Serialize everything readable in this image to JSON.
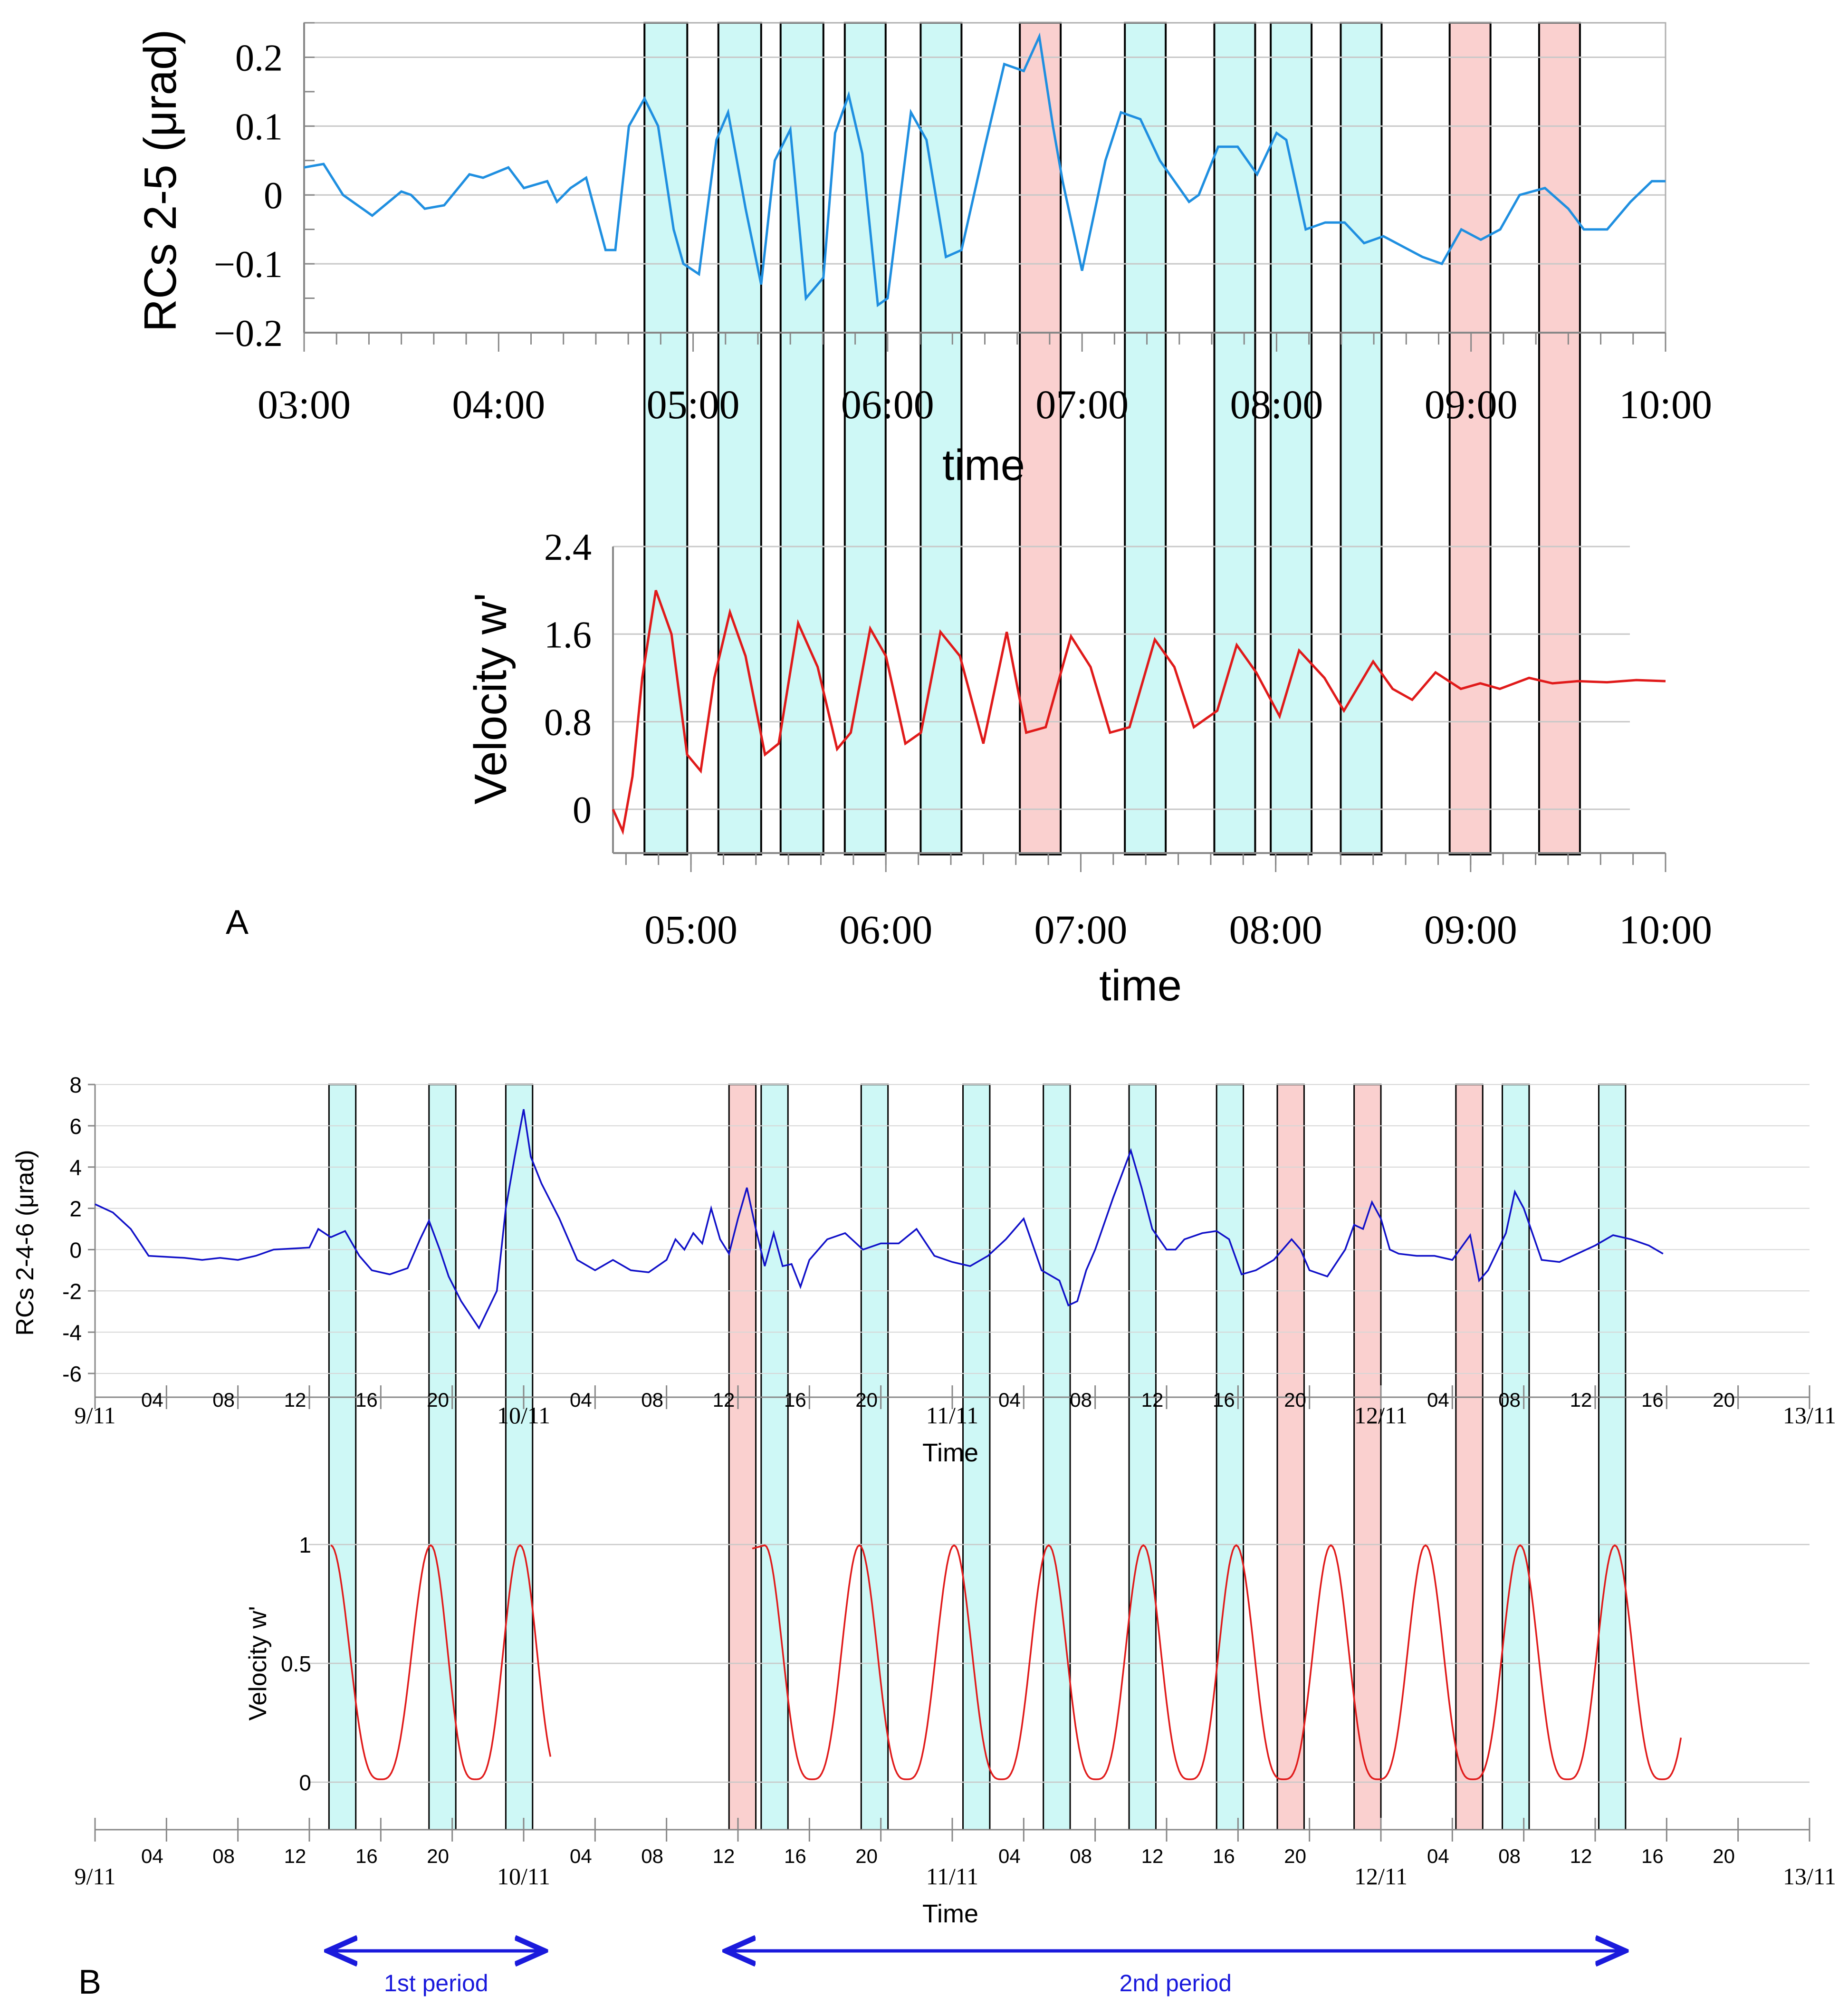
{
  "figure": {
    "panel_a_label": "A",
    "panel_b_label": "B",
    "period_1_label": "1st period",
    "period_2_label": "2nd period",
    "colors": {
      "cyan_band": "#c6f7f4",
      "pink_band": "#f9c8c7",
      "tilt_a": "#1f8fe0",
      "tilt_b": "#1010c8",
      "velocity": "#e01a1a",
      "grid": "#c8c8c8",
      "arrow": "#1a1adc"
    }
  },
  "chart_data": [
    {
      "id": "A-top",
      "type": "line",
      "ylabel": "RCs 2-5  (μrad)",
      "xlabel": "time",
      "x_unit": "hours",
      "xlim": [
        3.0,
        10.0
      ],
      "ylim": [
        -0.2,
        0.25
      ],
      "yticks": [
        0.2,
        0.1,
        0,
        -0.1,
        -0.2
      ],
      "ytick_labels": [
        "0.2",
        "0.1",
        "0",
        "−0.1",
        "−0.2"
      ],
      "xticks": [
        3,
        4,
        5,
        6,
        7,
        8,
        9,
        10
      ],
      "xtick_labels": [
        "03:00",
        "04:00",
        "05:00",
        "06:00",
        "07:00",
        "08:00",
        "09:00",
        "10:00"
      ],
      "series": [
        {
          "name": "RCs 2-5",
          "x": [
            3.0,
            3.1,
            3.2,
            3.35,
            3.5,
            3.55,
            3.62,
            3.72,
            3.85,
            3.92,
            4.05,
            4.13,
            4.25,
            4.3,
            4.37,
            4.45,
            4.55,
            4.6,
            4.67,
            4.75,
            4.82,
            4.9,
            4.95,
            5.03,
            5.12,
            5.18,
            5.27,
            5.35,
            5.42,
            5.5,
            5.58,
            5.67,
            5.73,
            5.8,
            5.87,
            5.95,
            6.0,
            6.12,
            6.2,
            6.3,
            6.38,
            6.5,
            6.6,
            6.7,
            6.78,
            6.85,
            6.9,
            7.0,
            7.12,
            7.2,
            7.3,
            7.4,
            7.55,
            7.6,
            7.7,
            7.8,
            7.9,
            8.0,
            8.05,
            8.15,
            8.25,
            8.35,
            8.45,
            8.55,
            8.65,
            8.75,
            8.85,
            8.95,
            9.05,
            9.15,
            9.25,
            9.38,
            9.5,
            9.58,
            9.7,
            9.82,
            9.93,
            10.0
          ],
          "y": [
            0.04,
            0.045,
            0.0,
            -0.03,
            0.005,
            0.0,
            -0.02,
            -0.015,
            0.03,
            0.025,
            0.04,
            0.01,
            0.02,
            -0.01,
            0.01,
            0.025,
            -0.08,
            -0.08,
            0.1,
            0.14,
            0.1,
            -0.05,
            -0.1,
            -0.115,
            0.08,
            0.12,
            -0.02,
            -0.13,
            0.05,
            0.095,
            -0.15,
            -0.12,
            0.09,
            0.145,
            0.06,
            -0.16,
            -0.15,
            0.12,
            0.08,
            -0.09,
            -0.08,
            0.07,
            0.19,
            0.18,
            0.23,
            0.1,
            0.02,
            -0.11,
            0.05,
            0.12,
            0.11,
            0.05,
            -0.01,
            0.0,
            0.07,
            0.07,
            0.03,
            0.09,
            0.08,
            -0.05,
            -0.04,
            -0.04,
            -0.07,
            -0.06,
            -0.075,
            -0.09,
            -0.1,
            -0.05,
            -0.065,
            -0.05,
            0.0,
            0.01,
            -0.02,
            -0.05,
            -0.05,
            -0.01,
            0.02,
            0.02
          ]
        }
      ],
      "bands": [
        {
          "start": 4.75,
          "end": 4.97,
          "color": "cyan"
        },
        {
          "start": 5.13,
          "end": 5.35,
          "color": "cyan"
        },
        {
          "start": 5.45,
          "end": 5.67,
          "color": "cyan"
        },
        {
          "start": 5.78,
          "end": 5.99,
          "color": "cyan"
        },
        {
          "start": 6.17,
          "end": 6.38,
          "color": "cyan"
        },
        {
          "start": 6.68,
          "end": 6.89,
          "color": "pink"
        },
        {
          "start": 7.22,
          "end": 7.43,
          "color": "cyan"
        },
        {
          "start": 7.68,
          "end": 7.89,
          "color": "cyan"
        },
        {
          "start": 7.97,
          "end": 8.18,
          "color": "cyan"
        },
        {
          "start": 8.33,
          "end": 8.54,
          "color": "cyan"
        },
        {
          "start": 8.89,
          "end": 9.1,
          "color": "pink"
        },
        {
          "start": 9.35,
          "end": 9.56,
          "color": "pink"
        }
      ]
    },
    {
      "id": "A-bottom",
      "type": "line",
      "ylabel": "Velocity w'",
      "xlabel": "time",
      "x_unit": "hours",
      "xlim": [
        4.6,
        10.0
      ],
      "ylim": [
        -0.4,
        2.4
      ],
      "yticks": [
        2.4,
        1.6,
        0.8,
        0
      ],
      "ytick_labels": [
        "2.4",
        "1.6",
        "0.8",
        "0"
      ],
      "xticks": [
        5,
        6,
        7,
        8,
        9,
        10
      ],
      "xtick_labels": [
        "05:00",
        "06:00",
        "07:00",
        "08:00",
        "09:00",
        "10:00"
      ],
      "series": [
        {
          "name": "Velocity w'",
          "x": [
            4.6,
            4.65,
            4.7,
            4.75,
            4.82,
            4.9,
            4.98,
            5.05,
            5.12,
            5.2,
            5.28,
            5.38,
            5.45,
            5.55,
            5.65,
            5.75,
            5.82,
            5.92,
            6.0,
            6.1,
            6.18,
            6.28,
            6.38,
            6.5,
            6.62,
            6.72,
            6.82,
            6.95,
            7.05,
            7.15,
            7.25,
            7.38,
            7.48,
            7.58,
            7.7,
            7.8,
            7.9,
            8.02,
            8.12,
            8.25,
            8.35,
            8.5,
            8.6,
            8.7,
            8.82,
            8.95,
            9.05,
            9.15,
            9.3,
            9.42,
            9.55,
            9.7,
            9.85,
            10.0
          ],
          "y": [
            0.0,
            -0.2,
            0.3,
            1.2,
            2.0,
            1.6,
            0.5,
            0.35,
            1.2,
            1.8,
            1.4,
            0.5,
            0.6,
            1.7,
            1.3,
            0.55,
            0.7,
            1.65,
            1.4,
            0.6,
            0.7,
            1.62,
            1.4,
            0.6,
            1.62,
            0.7,
            0.75,
            1.58,
            1.3,
            0.7,
            0.75,
            1.55,
            1.3,
            0.75,
            0.9,
            1.5,
            1.25,
            0.85,
            1.45,
            1.2,
            0.9,
            1.35,
            1.1,
            1.0,
            1.25,
            1.1,
            1.15,
            1.1,
            1.2,
            1.15,
            1.17,
            1.16,
            1.18,
            1.17
          ]
        }
      ]
    },
    {
      "id": "B-top",
      "type": "line",
      "ylabel": "RCs 2-4-6 (μrad)",
      "xlabel": "Time",
      "x_unit": "hours since 9/11 00:00",
      "xlim": [
        0,
        96
      ],
      "ylim": [
        -6,
        8
      ],
      "yticks": [
        8,
        6,
        4,
        2,
        0,
        -2,
        -4,
        -6
      ],
      "ytick_labels": [
        "8",
        "6",
        "4",
        "2",
        "0",
        "-2",
        "-4",
        "-6"
      ],
      "xticks": [
        0,
        4,
        8,
        12,
        16,
        20,
        24,
        28,
        32,
        36,
        40,
        44,
        48,
        52,
        56,
        60,
        64,
        68,
        72,
        76,
        80,
        84,
        88,
        92,
        96
      ],
      "xtick_labels": [
        "9/11",
        "04",
        "08",
        "12",
        "16",
        "20",
        "10/11",
        "04",
        "08",
        "12",
        "16",
        "20",
        "11/11",
        "04",
        "08",
        "12",
        "16",
        "20",
        "12/11",
        "04",
        "08",
        "12",
        "16",
        "20",
        "13/11"
      ],
      "series": [
        {
          "name": "RCs 2-4-6",
          "x": [
            0,
            1,
            2,
            3,
            5,
            6,
            7,
            8,
            9,
            10,
            12,
            12.5,
            13.2,
            14,
            14.8,
            15.5,
            16.5,
            17.5,
            18.2,
            18.7,
            19.3,
            19.8,
            20.5,
            21.5,
            22.5,
            23.0,
            23.5,
            24.0,
            24.4,
            25.0,
            26.0,
            27.0,
            28.0,
            29.0,
            30.0,
            31.0,
            32.0,
            32.5,
            33.0,
            33.5,
            34.0,
            34.5,
            35.0,
            35.5,
            36.0,
            36.5,
            37.0,
            37.5,
            38.0,
            38.5,
            39.0,
            39.5,
            40.0,
            40.5,
            41.0,
            42.0,
            43.0,
            44.0,
            45.0,
            46.0,
            47.0,
            48.0,
            49.0,
            50.0,
            51.0,
            52.0,
            53.0,
            54.0,
            54.5,
            55.0,
            55.5,
            56.0,
            57.0,
            58.0,
            58.6,
            59.2,
            60.0,
            60.5,
            61.0,
            62.0,
            62.8,
            63.5,
            64.2,
            65.0,
            66.0,
            67.0,
            67.5,
            68.0,
            69.0,
            70.0,
            70.5,
            71.0,
            71.5,
            72.0,
            72.5,
            73.0,
            74.0,
            75.0,
            76.0,
            77.0,
            77.5,
            78.0,
            79.0,
            79.5,
            80.0,
            81.0,
            82.0,
            83.0,
            84.0,
            85.0,
            86.0,
            87.0,
            87.8
          ],
          "y": [
            2.2,
            1.8,
            1.0,
            -0.3,
            -0.4,
            -0.5,
            -0.4,
            -0.5,
            -0.3,
            0.0,
            0.1,
            1.0,
            0.6,
            0.9,
            -0.3,
            -1.0,
            -1.2,
            -0.9,
            0.5,
            1.4,
            0.0,
            -1.3,
            -2.5,
            -3.8,
            -2.0,
            2.0,
            4.5,
            6.8,
            4.5,
            3.2,
            1.5,
            -0.5,
            -1.0,
            -0.5,
            -1.0,
            -1.1,
            -0.5,
            0.5,
            0.0,
            0.8,
            0.3,
            2.0,
            0.5,
            -0.2,
            1.5,
            3.0,
            1.0,
            -0.8,
            0.8,
            -0.8,
            -0.7,
            -1.8,
            -0.5,
            0.0,
            0.5,
            0.8,
            0.0,
            0.3,
            0.3,
            1.0,
            -0.3,
            -0.6,
            -0.8,
            -0.3,
            0.5,
            1.5,
            -1.0,
            -1.5,
            -2.7,
            -2.5,
            -1.0,
            0.0,
            2.5,
            4.8,
            3.0,
            1.0,
            0.0,
            0.0,
            0.5,
            0.8,
            0.9,
            0.5,
            -1.2,
            -1.0,
            -0.5,
            0.5,
            0.0,
            -1.0,
            -1.3,
            0.0,
            1.2,
            1.0,
            2.3,
            1.5,
            0.0,
            -0.2,
            -0.3,
            -0.3,
            -0.5,
            0.7,
            -1.5,
            -1.0,
            0.8,
            2.8,
            2.0,
            -0.5,
            -0.6,
            -0.2,
            0.2,
            0.7,
            0.5,
            0.2,
            -0.2
          ]
        }
      ],
      "bands": [
        {
          "start": 13.1,
          "end": 14.6,
          "color": "cyan"
        },
        {
          "start": 18.7,
          "end": 20.2,
          "color": "cyan"
        },
        {
          "start": 23.0,
          "end": 24.5,
          "color": "cyan"
        },
        {
          "start": 35.5,
          "end": 37.0,
          "color": "pink"
        },
        {
          "start": 37.3,
          "end": 38.8,
          "color": "cyan"
        },
        {
          "start": 42.9,
          "end": 44.4,
          "color": "cyan"
        },
        {
          "start": 48.6,
          "end": 50.1,
          "color": "cyan"
        },
        {
          "start": 53.1,
          "end": 54.6,
          "color": "cyan"
        },
        {
          "start": 57.9,
          "end": 59.4,
          "color": "cyan"
        },
        {
          "start": 62.8,
          "end": 64.3,
          "color": "cyan"
        },
        {
          "start": 66.2,
          "end": 67.7,
          "color": "pink"
        },
        {
          "start": 70.5,
          "end": 72.0,
          "color": "pink"
        },
        {
          "start": 76.2,
          "end": 77.7,
          "color": "pink"
        },
        {
          "start": 78.8,
          "end": 80.3,
          "color": "cyan"
        },
        {
          "start": 84.2,
          "end": 85.7,
          "color": "cyan"
        }
      ]
    },
    {
      "id": "B-bottom",
      "type": "line",
      "ylabel": "Velocity w'",
      "xlabel": "Time",
      "x_unit": "hours since 9/11 00:00",
      "xlim": [
        0,
        96
      ],
      "ylim": [
        -0.2,
        1.0
      ],
      "yticks": [
        1,
        0.5,
        0
      ],
      "ytick_labels": [
        "1",
        "0.5",
        "0"
      ],
      "xticks": [
        0,
        4,
        8,
        12,
        16,
        20,
        24,
        28,
        32,
        36,
        40,
        44,
        48,
        52,
        56,
        60,
        64,
        68,
        72,
        76,
        80,
        84,
        88,
        92,
        96
      ],
      "xtick_labels": [
        "9/11",
        "04",
        "08",
        "12",
        "16",
        "20",
        "10/11",
        "04",
        "08",
        "12",
        "16",
        "20",
        "11/11",
        "04",
        "08",
        "12",
        "16",
        "20",
        "12/11",
        "04",
        "08",
        "12",
        "16",
        "20",
        "13/11"
      ],
      "series": [
        {
          "name": "Velocity w' (1st period)",
          "peak_hours": [
            13.2,
            18.8,
            23.8
          ],
          "period_hours": [
            13.2,
            25.5
          ]
        },
        {
          "name": "Velocity w' (2nd period)",
          "peak_hours": [
            37.5,
            42.8,
            48.1,
            53.4,
            58.7,
            63.9,
            69.2,
            74.5,
            79.8,
            85.1
          ],
          "period_hours": [
            36.8,
            88.8
          ]
        }
      ],
      "annotations": [
        {
          "text": "1st period",
          "from": 13.2,
          "to": 25.0
        },
        {
          "text": "2nd period",
          "from": 35.5,
          "to": 85.5
        }
      ]
    }
  ]
}
